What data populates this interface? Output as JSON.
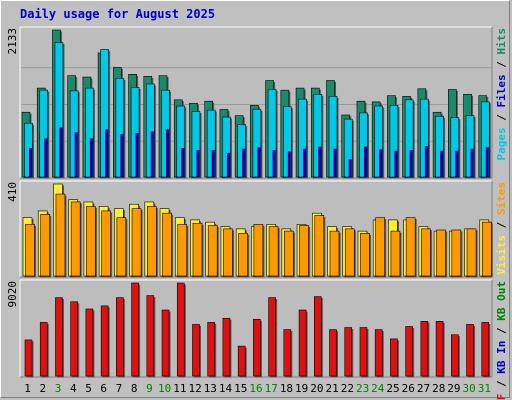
{
  "title": "Daily usage for August 2025",
  "colors": {
    "background": "#c0c0c0",
    "panel": "#bdbdbd",
    "text_blue": "#0000cc",
    "pages_fill": "#00c8e8",
    "pages_dark": "#0000a0",
    "hits_fill": "#1a8a6a",
    "files_fill": "#00c8e8",
    "sites_fill": "#ff9900",
    "visits_fill": "#ffee33",
    "kbin_fill": "#dd1111",
    "weekend_color": "#008000"
  },
  "chart_data": [
    {
      "type": "bar",
      "name": "hits-files-pages",
      "categories": [
        "1",
        "2",
        "3",
        "4",
        "5",
        "6",
        "7",
        "8",
        "9",
        "10",
        "11",
        "12",
        "13",
        "14",
        "15",
        "16",
        "17",
        "18",
        "19",
        "20",
        "21",
        "22",
        "23",
        "24",
        "25",
        "26",
        "27",
        "28",
        "29",
        "30",
        "31"
      ],
      "ylim": [
        0,
        2133
      ],
      "y_max_label": "2133",
      "series": [
        {
          "name": "Hits",
          "values": [
            940,
            1290,
            2133,
            1470,
            1450,
            1800,
            1590,
            1490,
            1460,
            1470,
            1120,
            1070,
            1100,
            980,
            890,
            1040,
            1400,
            1260,
            1290,
            1290,
            1400,
            900,
            1100,
            1090,
            1180,
            1170,
            1280,
            940,
            1270,
            1200,
            1180
          ]
        },
        {
          "name": "Files",
          "values": [
            780,
            1260,
            1950,
            1250,
            1290,
            1850,
            1430,
            1300,
            1350,
            1260,
            1030,
            950,
            970,
            870,
            760,
            980,
            1270,
            1020,
            1130,
            1200,
            1170,
            840,
            930,
            1030,
            1040,
            1120,
            1130,
            880,
            860,
            890,
            1090
          ]
        },
        {
          "name": "Pages",
          "values": [
            420,
            560,
            720,
            650,
            560,
            690,
            620,
            640,
            660,
            690,
            420,
            390,
            390,
            350,
            410,
            430,
            390,
            370,
            410,
            440,
            410,
            260,
            440,
            400,
            380,
            390,
            450,
            380,
            380,
            410,
            430
          ]
        }
      ],
      "right_label": [
        "Pages",
        "/",
        "Files",
        "/",
        "Hits"
      ]
    },
    {
      "type": "bar",
      "name": "sites-visits",
      "categories": [
        "1",
        "2",
        "3",
        "4",
        "5",
        "6",
        "7",
        "8",
        "9",
        "10",
        "11",
        "12",
        "13",
        "14",
        "15",
        "16",
        "17",
        "18",
        "19",
        "20",
        "21",
        "22",
        "23",
        "24",
        "25",
        "26",
        "27",
        "28",
        "29",
        "30",
        "31"
      ],
      "ylim": [
        0,
        410
      ],
      "y_max_label": "410",
      "series": [
        {
          "name": "Visits",
          "values": [
            260,
            290,
            410,
            340,
            330,
            310,
            300,
            320,
            330,
            300,
            260,
            250,
            240,
            220,
            210,
            220,
            230,
            210,
            230,
            280,
            220,
            220,
            200,
            250,
            250,
            250,
            220,
            200,
            200,
            210,
            250
          ]
        },
        {
          "name": "Sites",
          "values": [
            230,
            275,
            365,
            330,
            310,
            290,
            260,
            300,
            310,
            280,
            230,
            235,
            225,
            210,
            190,
            230,
            220,
            200,
            225,
            270,
            200,
            210,
            190,
            260,
            200,
            260,
            210,
            205,
            205,
            210,
            240
          ]
        }
      ],
      "right_label": [
        "Visits",
        "/",
        "Sites"
      ]
    },
    {
      "type": "bar",
      "name": "kbytes",
      "categories": [
        "1",
        "2",
        "3",
        "4",
        "5",
        "6",
        "7",
        "8",
        "9",
        "10",
        "11",
        "12",
        "13",
        "14",
        "15",
        "16",
        "17",
        "18",
        "19",
        "20",
        "21",
        "22",
        "23",
        "24",
        "25",
        "26",
        "27",
        "28",
        "29",
        "30",
        "31"
      ],
      "ylim": [
        0,
        9020
      ],
      "y_max_label": "9020",
      "series": [
        {
          "name": "KB In",
          "values": [
            3500,
            5200,
            7600,
            7200,
            6500,
            6800,
            7600,
            9020,
            7800,
            6400,
            9020,
            5000,
            5200,
            5600,
            2900,
            5500,
            7600,
            4500,
            6400,
            7700,
            4500,
            4700,
            4700,
            4500,
            3600,
            4800,
            5300,
            5300,
            4000,
            5000,
            5200
          ]
        }
      ],
      "right_label": [
        "KB F",
        "/",
        "KB In",
        "/",
        "KB Out"
      ]
    }
  ],
  "weekend_days": [
    3,
    9,
    10,
    16,
    17,
    23,
    24,
    30,
    31
  ]
}
